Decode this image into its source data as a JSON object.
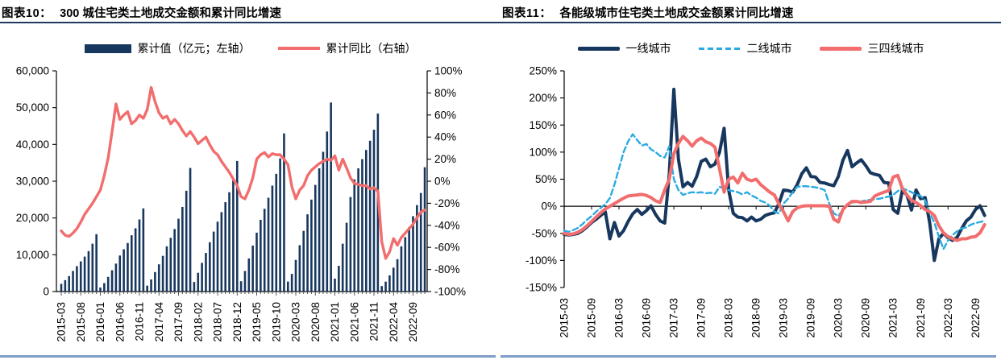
{
  "colors": {
    "navy": "#17375E",
    "red": "#F26D6D",
    "lightblue": "#29ABE2",
    "title_rule": "#1F3864",
    "bottom_rule": "#7E9DC8",
    "axis": "#000000"
  },
  "panels": [
    {
      "title_label": "图表10：",
      "title_text": "300 城住宅类土地成交金额和累计同比增速",
      "legend": [
        {
          "swatch": "bar",
          "color_key": "navy",
          "label": "累计值（亿元；左轴）"
        },
        {
          "swatch": "line",
          "color_key": "red",
          "label": "累计同比（右轴）"
        }
      ]
    },
    {
      "title_label": "图表11：",
      "title_text": "各能级城市住宅类土地成交金额累计同比增速",
      "legend": [
        {
          "swatch": "line-thick",
          "color_key": "navy",
          "label": "一线城市"
        },
        {
          "swatch": "dashed",
          "color_key": "lightblue",
          "label": "二线城市"
        },
        {
          "swatch": "line-thick",
          "color_key": "red",
          "label": "三四线城市"
        }
      ]
    }
  ],
  "chart_data": [
    {
      "type": "bar",
      "title": "300 城住宅类土地成交金额和累计同比增速",
      "start_month": "2015-03",
      "x_tick_every_months": 5,
      "x_tick_labels": [
        "2015-03",
        "2015-08",
        "2016-01",
        "2016-06",
        "2016-11",
        "2017-04",
        "2017-09",
        "2018-02",
        "2018-07",
        "2018-12",
        "2019-05",
        "2019-10",
        "2020-03",
        "2020-08",
        "2021-01",
        "2021-06",
        "2021-11",
        "2022-04",
        "2022-09"
      ],
      "left_axis": {
        "name": "累计值（亿元；左轴）",
        "min": 0,
        "max": 60000,
        "step": 10000
      },
      "right_axis": {
        "name": "累计同比（右轴）",
        "min": -100,
        "max": 100,
        "step": 20,
        "unit": "%"
      },
      "grid": false,
      "legend_position": "top",
      "bars_cumulative_value_yi_yuan": [
        2100,
        3100,
        4200,
        5600,
        6900,
        8200,
        9500,
        11000,
        13000,
        15600,
        1100,
        2300,
        4000,
        5800,
        7600,
        9800,
        11500,
        13200,
        15300,
        17200,
        19600,
        22600,
        1600,
        3300,
        5300,
        7400,
        9700,
        12300,
        14600,
        17000,
        19800,
        23000,
        27400,
        33600,
        2600,
        5100,
        7800,
        10500,
        13400,
        16300,
        19000,
        21600,
        24300,
        27000,
        30200,
        35500,
        2800,
        5600,
        9000,
        12500,
        16000,
        19500,
        22500,
        25500,
        28800,
        32000,
        36200,
        43000,
        2700,
        4800,
        8600,
        12600,
        16500,
        21000,
        25000,
        29000,
        33500,
        38000,
        43500,
        51400,
        3500,
        7000,
        13000,
        18700,
        25700,
        30500,
        33500,
        36000,
        38500,
        41000,
        44000,
        48400,
        1500,
        2700,
        4400,
        6500,
        8800,
        12300,
        14800,
        17500,
        20500,
        23500,
        26800,
        33800
      ],
      "line_cumulative_yoy_pct": [
        -45,
        -49,
        -50,
        -47,
        -43,
        -37,
        -30,
        -25,
        -20,
        -14,
        -8,
        5,
        21,
        45,
        70,
        56,
        60,
        63,
        52,
        55,
        60,
        57,
        65,
        85,
        72,
        62,
        57,
        59,
        52,
        56,
        52,
        46,
        41,
        45,
        40,
        34,
        37,
        40,
        33,
        27,
        24,
        18,
        13,
        8,
        2,
        -4,
        -14,
        -16,
        -8,
        3,
        20,
        24,
        26,
        22,
        25,
        24,
        24,
        20,
        15,
        -5,
        -16,
        -8,
        -4,
        5,
        10,
        13,
        16,
        18,
        20,
        19,
        23,
        10,
        20,
        12,
        3,
        -2,
        -3,
        -4,
        -4,
        -7,
        -6,
        -9,
        -55,
        -70,
        -64,
        -52,
        -58,
        -51,
        -47,
        -43,
        -39,
        -33,
        -28,
        -26
      ]
    },
    {
      "type": "line",
      "title": "各能级城市住宅类土地成交金额累计同比增速",
      "start_month": "2015-03",
      "x_tick_every_months": 6,
      "x_tick_labels": [
        "2015-03",
        "2015-09",
        "2016-03",
        "2016-09",
        "2017-03",
        "2017-09",
        "2018-03",
        "2018-09",
        "2019-03",
        "2019-09",
        "2020-03",
        "2020-09",
        "2021-03",
        "2021-09",
        "2022-03",
        "2022-09"
      ],
      "y_axis": {
        "min": -150,
        "max": 250,
        "step": 50,
        "unit": "%"
      },
      "grid": false,
      "legend_position": "top",
      "series": [
        {
          "name": "一线城市",
          "color_key": "navy",
          "style": "solid",
          "values_pct": [
            -52,
            -53,
            -52,
            -50,
            -45,
            -38,
            -30,
            -24,
            -17,
            -10,
            -60,
            -30,
            -55,
            -45,
            -28,
            -14,
            -6,
            -15,
            -8,
            1,
            -15,
            -27,
            -31,
            60,
            216,
            87,
            36,
            44,
            37,
            55,
            83,
            87,
            73,
            78,
            100,
            144,
            30,
            -13,
            -20,
            -21,
            -27,
            -20,
            -27,
            -24,
            -17,
            -14,
            -12,
            5,
            30,
            29,
            26,
            40,
            60,
            71,
            55,
            54,
            44,
            43,
            40,
            38,
            55,
            85,
            103,
            73,
            80,
            86,
            75,
            62,
            59,
            57,
            44,
            43,
            -6,
            -13,
            29,
            21,
            -7,
            30,
            14,
            16,
            -31,
            -100,
            -60,
            -50,
            -58,
            -63,
            -57,
            -41,
            -27,
            -20,
            -6,
            1,
            -17
          ]
        },
        {
          "name": "二线城市",
          "color_key": "lightblue",
          "style": "dashed",
          "values_pct": [
            -45,
            -47,
            -44,
            -40,
            -33,
            -25,
            -18,
            -10,
            -3,
            4,
            15,
            40,
            70,
            100,
            120,
            133,
            122,
            112,
            115,
            105,
            100,
            93,
            90,
            111,
            50,
            30,
            21,
            24,
            26,
            25,
            26,
            24,
            25,
            23,
            36,
            33,
            30,
            28,
            26,
            22,
            26,
            20,
            16,
            10,
            7,
            1,
            -10,
            -13,
            5,
            14,
            26,
            36,
            37,
            37,
            36,
            35,
            33,
            30,
            5,
            -13,
            -18,
            -6,
            3,
            7,
            8,
            9,
            11,
            12,
            13,
            14,
            16,
            18,
            21,
            28,
            33,
            30,
            26,
            22,
            19,
            11,
            -13,
            -30,
            -56,
            -79,
            -63,
            -53,
            -46,
            -41,
            -39,
            -34,
            -31,
            -29,
            -27
          ]
        },
        {
          "name": "三四线城市",
          "color_key": "red",
          "style": "solid",
          "values_pct": [
            -50,
            -52,
            -51,
            -48,
            -43,
            -36,
            -28,
            -20,
            -12,
            -5,
            0,
            5,
            10,
            15,
            19,
            20,
            21,
            22,
            20,
            16,
            10,
            7,
            30,
            50,
            97,
            116,
            129,
            121,
            111,
            121,
            126,
            119,
            116,
            109,
            69,
            26,
            50,
            54,
            43,
            61,
            50,
            47,
            50,
            40,
            33,
            26,
            21,
            4,
            -10,
            -27,
            -10,
            -3,
            0,
            1,
            1,
            1,
            1,
            1,
            0,
            -24,
            -29,
            -6,
            3,
            9,
            9,
            7,
            8,
            9,
            19,
            23,
            26,
            29,
            54,
            57,
            33,
            21,
            11,
            7,
            1,
            -6,
            -10,
            -17,
            -36,
            -49,
            -56,
            -60,
            -63,
            -60,
            -60,
            -57,
            -56,
            -49,
            -34
          ]
        }
      ]
    }
  ]
}
